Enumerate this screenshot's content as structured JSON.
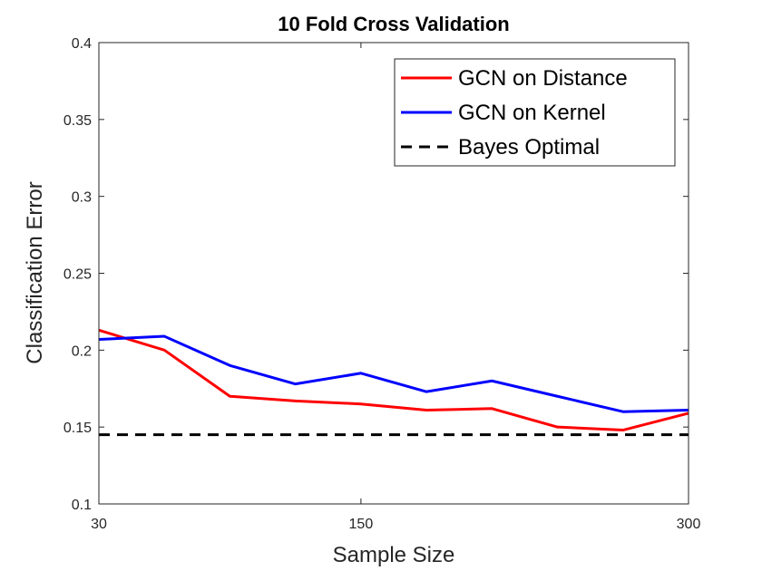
{
  "chart_data": {
    "type": "line",
    "title": "10 Fold Cross Validation",
    "xlabel": "Sample Size",
    "ylabel": "Classification Error",
    "xlim": [
      30,
      300
    ],
    "ylim": [
      0.1,
      0.4
    ],
    "xticks": [
      30,
      150,
      300
    ],
    "xtick_labels": [
      "30",
      "150",
      "300"
    ],
    "yticks": [
      0.1,
      0.15,
      0.2,
      0.25,
      0.3,
      0.35,
      0.4
    ],
    "ytick_labels": [
      "0.1",
      "0.15",
      "0.2",
      "0.25",
      "0.3",
      "0.35",
      "0.4"
    ],
    "grid": false,
    "legend_position": "top-right",
    "series": [
      {
        "name": "GCN on Distance",
        "color": "#ff0000",
        "style": "solid",
        "x": [
          30,
          60,
          90,
          120,
          150,
          180,
          210,
          240,
          270,
          300
        ],
        "y": [
          0.213,
          0.2,
          0.17,
          0.167,
          0.165,
          0.161,
          0.162,
          0.15,
          0.148,
          0.159
        ]
      },
      {
        "name": "GCN on Kernel",
        "color": "#0000ff",
        "style": "solid",
        "x": [
          30,
          60,
          90,
          120,
          150,
          180,
          210,
          240,
          270,
          300
        ],
        "y": [
          0.207,
          0.209,
          0.19,
          0.178,
          0.185,
          0.173,
          0.18,
          0.17,
          0.16,
          0.161
        ]
      },
      {
        "name": "Bayes Optimal",
        "color": "#000000",
        "style": "dashed",
        "x": [
          30,
          300
        ],
        "y": [
          0.145,
          0.145
        ]
      }
    ]
  }
}
